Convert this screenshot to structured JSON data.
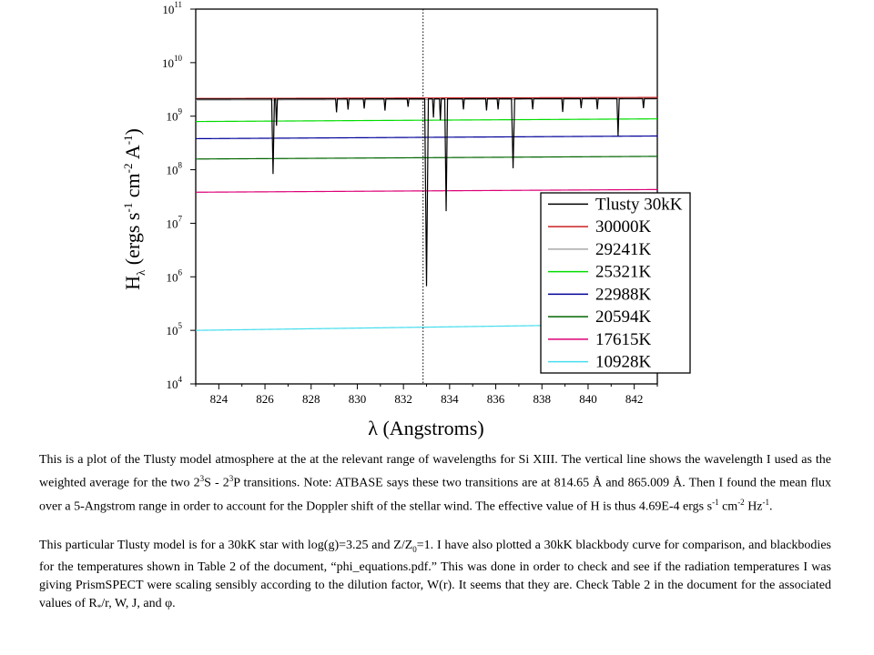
{
  "chart_data": {
    "type": "line",
    "xlabel": "λ (Angstroms)",
    "ylabel": {
      "symbol": "H",
      "sub": "λ",
      "open": " (ergs s",
      "sup1": "-1",
      "mid": " cm",
      "sup2": "-2",
      "mid2": " A",
      "sup3": "-1",
      "close": ")"
    },
    "xlim": [
      823,
      843
    ],
    "ylim": [
      4,
      11
    ],
    "y_scale": "log",
    "x_ticks": [
      824,
      826,
      828,
      830,
      832,
      834,
      836,
      838,
      840,
      842
    ],
    "y_ticks": [
      {
        "base": "10",
        "exp": "11",
        "value": 11
      },
      {
        "base": "10",
        "exp": "10",
        "value": 10
      },
      {
        "base": "10",
        "exp": "9",
        "value": 9
      },
      {
        "base": "10",
        "exp": "8",
        "value": 8
      },
      {
        "base": "10",
        "exp": "7",
        "value": 7
      },
      {
        "base": "10",
        "exp": "6",
        "value": 6
      },
      {
        "base": "10",
        "exp": "5",
        "value": 5
      },
      {
        "base": "10",
        "exp": "4",
        "value": 4
      }
    ],
    "vertical_line_x": 832.85,
    "legend_position": "lower-right",
    "series": [
      {
        "name": "Tlusty 30kK",
        "color": "#000000",
        "log_start": 9.32,
        "log_end": 9.33,
        "dips": [
          {
            "x": 826.35,
            "depth": 1.4,
            "w": 0.06
          },
          {
            "x": 826.5,
            "depth": 0.5,
            "w": 0.04
          },
          {
            "x": 829.1,
            "depth": 0.25,
            "w": 0.04
          },
          {
            "x": 829.6,
            "depth": 0.2,
            "w": 0.04
          },
          {
            "x": 830.3,
            "depth": 0.18,
            "w": 0.04
          },
          {
            "x": 831.2,
            "depth": 0.22,
            "w": 0.04
          },
          {
            "x": 832.2,
            "depth": 0.15,
            "w": 0.04
          },
          {
            "x": 833.0,
            "depth": 3.5,
            "w": 0.08
          },
          {
            "x": 833.3,
            "depth": 0.35,
            "w": 0.04
          },
          {
            "x": 833.6,
            "depth": 0.4,
            "w": 0.04
          },
          {
            "x": 833.85,
            "depth": 2.1,
            "w": 0.06
          },
          {
            "x": 834.6,
            "depth": 0.2,
            "w": 0.04
          },
          {
            "x": 835.6,
            "depth": 0.22,
            "w": 0.04
          },
          {
            "x": 836.1,
            "depth": 0.2,
            "w": 0.04
          },
          {
            "x": 836.75,
            "depth": 1.3,
            "w": 0.07
          },
          {
            "x": 837.6,
            "depth": 0.2,
            "w": 0.04
          },
          {
            "x": 838.9,
            "depth": 0.25,
            "w": 0.04
          },
          {
            "x": 839.7,
            "depth": 0.18,
            "w": 0.04
          },
          {
            "x": 840.4,
            "depth": 0.2,
            "w": 0.04
          },
          {
            "x": 841.3,
            "depth": 0.7,
            "w": 0.05
          },
          {
            "x": 842.4,
            "depth": 0.18,
            "w": 0.04
          }
        ]
      },
      {
        "name": "30000K",
        "color": "#cc2222",
        "log_start": 9.33,
        "log_end": 9.35
      },
      {
        "name": "29241K",
        "color": "#aaaaaa",
        "log_start": 9.3,
        "log_end": 9.32
      },
      {
        "name": "25321K",
        "color": "#00dd00",
        "log_start": 8.9,
        "log_end": 8.95
      },
      {
        "name": "22988K",
        "color": "#000099",
        "log_start": 8.58,
        "log_end": 8.63
      },
      {
        "name": "20594K",
        "color": "#006600",
        "log_start": 8.2,
        "log_end": 8.25
      },
      {
        "name": "17615K",
        "color": "#dd0077",
        "log_start": 7.58,
        "log_end": 7.63
      },
      {
        "name": "10928K",
        "color": "#44ddee",
        "log_start": 5.0,
        "log_end": 5.12
      }
    ]
  },
  "caption": {
    "p1": [
      {
        "t": "This is a plot of the Tlusty model atmosphere at the at the relevant range of wavelengths for Si XIII.  The vertical line shows the wavelength I used as the weighted average for the two 2"
      },
      {
        "t": "3",
        "s": "sup"
      },
      {
        "t": "S - 2"
      },
      {
        "t": "3",
        "s": "sup"
      },
      {
        "t": "P transitions.  Note:  ATBASE says these two transitions are at 814.65 Å and 865.009 Å.  Then I found the mean flux over a 5-Angstrom range in order to account for the Doppler shift of the stellar wind.  The effective value of H is thus 4.69E-4 ergs s"
      },
      {
        "t": "-1",
        "s": "sup"
      },
      {
        "t": " cm"
      },
      {
        "t": "-2",
        "s": "sup"
      },
      {
        "t": " Hz"
      },
      {
        "t": "-1",
        "s": "sup"
      },
      {
        "t": "."
      }
    ],
    "p2": [
      {
        "t": "This particular Tlusty model is for a 30kK star with log(g)=3.25 and Z/Z"
      },
      {
        "t": "0",
        "s": "sub"
      },
      {
        "t": "=1.  I have also plotted a 30kK blackbody curve for comparison, and blackbodies for the temperatures shown in Table 2 of the document, “phi_equations.pdf.”  This was done in order to check and see if the radiation temperatures I was giving PrismSPECT were scaling sensibly according to the dilution factor, W(r).  It seems that they are.  Check Table 2 in the document for the associated values of R"
      },
      {
        "t": "*",
        "s": "sub"
      },
      {
        "t": "/r, W, J, and φ."
      }
    ]
  }
}
